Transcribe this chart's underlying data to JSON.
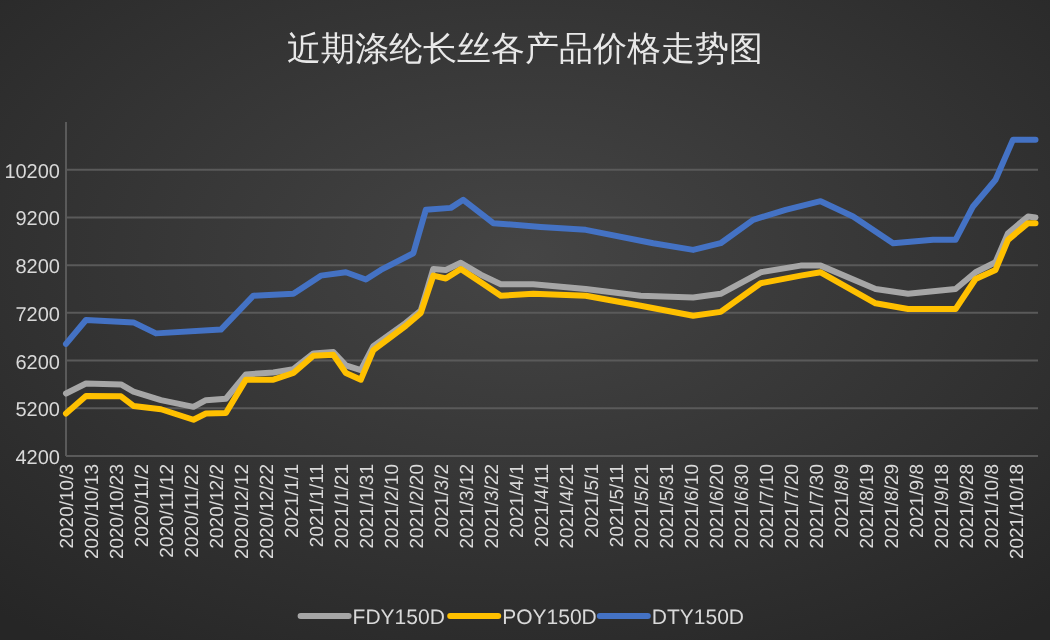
{
  "chart_data": {
    "type": "line",
    "title": "近期涤纶长丝各产品价格走势图",
    "x": [
      "2020-10-03",
      "2020-10-11",
      "2020-10-25",
      "2020-10-30",
      "2020-11-10",
      "2020-11-23",
      "2020-11-28",
      "2020-12-06",
      "2020-12-14",
      "2020-12-25",
      "2021-01-02",
      "2021-01-10",
      "2021-01-18",
      "2021-01-23",
      "2021-01-29",
      "2021-02-03",
      "2021-02-16",
      "2021-02-22",
      "2021-02-27",
      "2021-03-04",
      "2021-03-10",
      "2021-03-18",
      "2021-03-26",
      "2021-04-08",
      "2021-04-29",
      "2021-05-21",
      "2021-06-11",
      "2021-06-22",
      "2021-07-08",
      "2021-07-24",
      "2021-08-01",
      "2021-08-23",
      "2021-09-05",
      "2021-09-24",
      "2021-10-02",
      "2021-10-10",
      "2021-10-15",
      "2021-10-23",
      "2021-10-26"
    ],
    "series": [
      {
        "name": "FDY150D",
        "color": "#a6a6a6",
        "values": [
          5510,
          5720,
          5700,
          5550,
          5370,
          5230,
          5370,
          5400,
          5910,
          5950,
          6020,
          6350,
          6380,
          6100,
          6000,
          6500,
          6990,
          7250,
          8120,
          8100,
          8250,
          8000,
          7800,
          7800,
          7700,
          7560,
          7520,
          7600,
          8050,
          8190,
          8190,
          7700,
          7600,
          7700,
          8050,
          8260,
          8870,
          9220,
          9200
        ]
      },
      {
        "name": "POY150D",
        "color": "#ffc000",
        "values": [
          5090,
          5460,
          5450,
          5250,
          5180,
          4960,
          5090,
          5100,
          5800,
          5800,
          5940,
          6300,
          6320,
          5940,
          5800,
          6420,
          6930,
          7200,
          7980,
          7920,
          8120,
          7840,
          7560,
          7600,
          7560,
          7350,
          7140,
          7220,
          7820,
          7980,
          8050,
          7400,
          7280,
          7280,
          7910,
          8100,
          8730,
          9080,
          9080
        ]
      },
      {
        "name": "DTY150D",
        "color": "#4472c4",
        "x": [
          "2020-10-03",
          "2020-10-11",
          "2020-10-30",
          "2020-11-08",
          "2020-12-04",
          "2020-12-17",
          "2021-01-02",
          "2021-01-13",
          "2021-01-23",
          "2021-01-31",
          "2021-02-06",
          "2021-02-19",
          "2021-02-24",
          "2021-03-06",
          "2021-03-11",
          "2021-03-23",
          "2021-04-11",
          "2021-04-29",
          "2021-05-26",
          "2021-06-11",
          "2021-06-22",
          "2021-07-05",
          "2021-07-18",
          "2021-08-01",
          "2021-08-14",
          "2021-08-30",
          "2021-09-15",
          "2021-09-24",
          "2021-10-01",
          "2021-10-10",
          "2021-10-17",
          "2021-10-26"
        ],
        "values": [
          6550,
          7050,
          7000,
          6770,
          6850,
          7560,
          7600,
          7980,
          8050,
          7900,
          8100,
          8450,
          9360,
          9400,
          9570,
          9080,
          9000,
          8940,
          8660,
          8520,
          8660,
          9150,
          9360,
          9540,
          9220,
          8660,
          8730,
          8730,
          9430,
          9990,
          10830,
          10830
        ]
      }
    ],
    "xlim": [
      "2020-10-03",
      "2021-10-27"
    ],
    "xticks": [
      {
        "value": "2020-10-03",
        "label": "2020/10/3"
      },
      {
        "value": "2020-10-13",
        "label": "2020/10/13"
      },
      {
        "value": "2020-10-23",
        "label": "2020/10/23"
      },
      {
        "value": "2020-11-02",
        "label": "2020/11/2"
      },
      {
        "value": "2020-11-12",
        "label": "2020/11/12"
      },
      {
        "value": "2020-11-22",
        "label": "2020/11/22"
      },
      {
        "value": "2020-12-02",
        "label": "2020/12/2"
      },
      {
        "value": "2020-12-12",
        "label": "2020/12/12"
      },
      {
        "value": "2020-12-22",
        "label": "2020/12/22"
      },
      {
        "value": "2021-01-01",
        "label": "2021/1/1"
      },
      {
        "value": "2021-01-11",
        "label": "2021/1/11"
      },
      {
        "value": "2021-01-21",
        "label": "2021/1/21"
      },
      {
        "value": "2021-01-31",
        "label": "2021/1/31"
      },
      {
        "value": "2021-02-10",
        "label": "2021/2/10"
      },
      {
        "value": "2021-02-20",
        "label": "2021/2/20"
      },
      {
        "value": "2021-03-02",
        "label": "2021/3/2"
      },
      {
        "value": "2021-03-12",
        "label": "2021/3/12"
      },
      {
        "value": "2021-03-22",
        "label": "2021/3/22"
      },
      {
        "value": "2021-04-01",
        "label": "2021/4/1"
      },
      {
        "value": "2021-04-11",
        "label": "2021/4/11"
      },
      {
        "value": "2021-04-21",
        "label": "2021/4/21"
      },
      {
        "value": "2021-05-01",
        "label": "2021/5/1"
      },
      {
        "value": "2021-05-11",
        "label": "2021/5/11"
      },
      {
        "value": "2021-05-21",
        "label": "2021/5/21"
      },
      {
        "value": "2021-05-31",
        "label": "2021/5/31"
      },
      {
        "value": "2021-06-10",
        "label": "2021/6/10"
      },
      {
        "value": "2021-06-20",
        "label": "2021/6/20"
      },
      {
        "value": "2021-06-30",
        "label": "2021/6/30"
      },
      {
        "value": "2021-07-10",
        "label": "2021/7/10"
      },
      {
        "value": "2021-07-20",
        "label": "2021/7/20"
      },
      {
        "value": "2021-07-30",
        "label": "2021/7/30"
      },
      {
        "value": "2021-08-09",
        "label": "2021/8/9"
      },
      {
        "value": "2021-08-19",
        "label": "2021/8/19"
      },
      {
        "value": "2021-08-29",
        "label": "2021/8/29"
      },
      {
        "value": "2021-09-08",
        "label": "2021/9/8"
      },
      {
        "value": "2021-09-18",
        "label": "2021/9/18"
      },
      {
        "value": "2021-09-28",
        "label": "2021/9/28"
      },
      {
        "value": "2021-10-08",
        "label": "2021/10/8"
      },
      {
        "value": "2021-10-18",
        "label": "2021/10/18"
      }
    ],
    "ylim": [
      4200,
      11200
    ],
    "yticks": [
      4200,
      5200,
      6200,
      7200,
      8200,
      9200,
      10200
    ],
    "grid": "y",
    "legend": "bottom",
    "marker": "none",
    "line_style": "solid"
  }
}
